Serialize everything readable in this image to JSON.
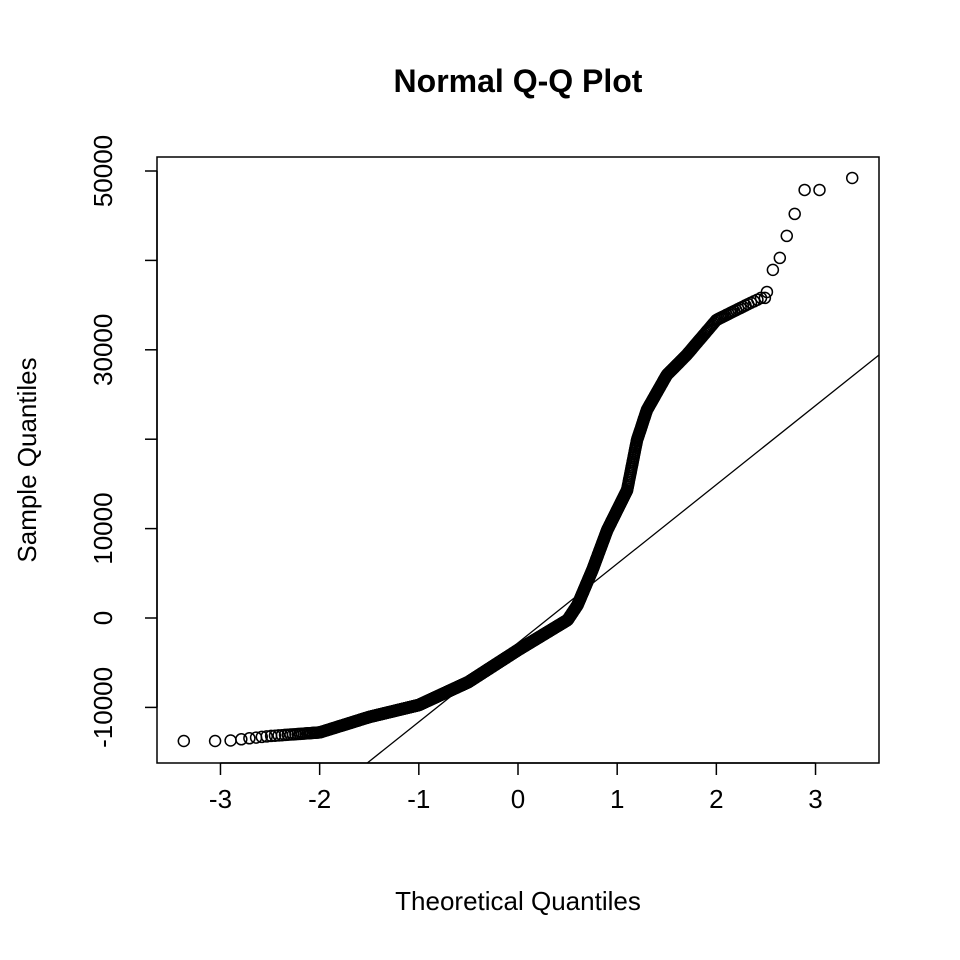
{
  "chart_data": {
    "type": "scatter",
    "title": "Normal Q-Q Plot",
    "xlabel": "Theoretical Quantiles",
    "ylabel": "Sample Quantiles",
    "xlim": [
      -3.64,
      3.64
    ],
    "ylim": [
      -16219,
      51566
    ],
    "xticks": [
      -3,
      -2,
      -1,
      0,
      1,
      2,
      3
    ],
    "xtick_labels": [
      "-3",
      "-2",
      "-1",
      "0",
      "1",
      "2",
      "3"
    ],
    "yticks": [
      -10000,
      0,
      10000,
      20000,
      30000,
      40000,
      50000
    ],
    "ytick_labels": [
      "-10000",
      "0",
      "10000",
      "",
      "30000",
      "",
      "50000"
    ],
    "grid": false,
    "point_count": 1330,
    "marker": "open-circle",
    "marker_color": "#000000",
    "sample_quantile_curve": {
      "x": [
        -3.38,
        -3.07,
        -2.9,
        -2.5,
        -2.0,
        -1.5,
        -1.0,
        -0.5,
        0.0,
        0.5,
        0.6,
        0.75,
        0.9,
        1.1,
        1.2,
        1.3,
        1.5,
        1.7,
        2.0,
        2.3,
        2.45
      ],
      "y": [
        -13760,
        -13760,
        -13700,
        -13200,
        -12800,
        -11070,
        -9730,
        -7160,
        -3580,
        -220,
        1450,
        5370,
        9840,
        14300,
        19900,
        23270,
        27180,
        29420,
        33330,
        35000,
        35800
      ]
    },
    "upper_tail_points": {
      "x": [
        2.51,
        2.57,
        2.64,
        2.71,
        2.79,
        2.89,
        3.04,
        3.37
      ],
      "y": [
        36470,
        38940,
        40280,
        42740,
        45200,
        47880,
        47880,
        49220
      ]
    },
    "reference_line": {
      "intercept": -2775,
      "slope": 8845
    }
  }
}
